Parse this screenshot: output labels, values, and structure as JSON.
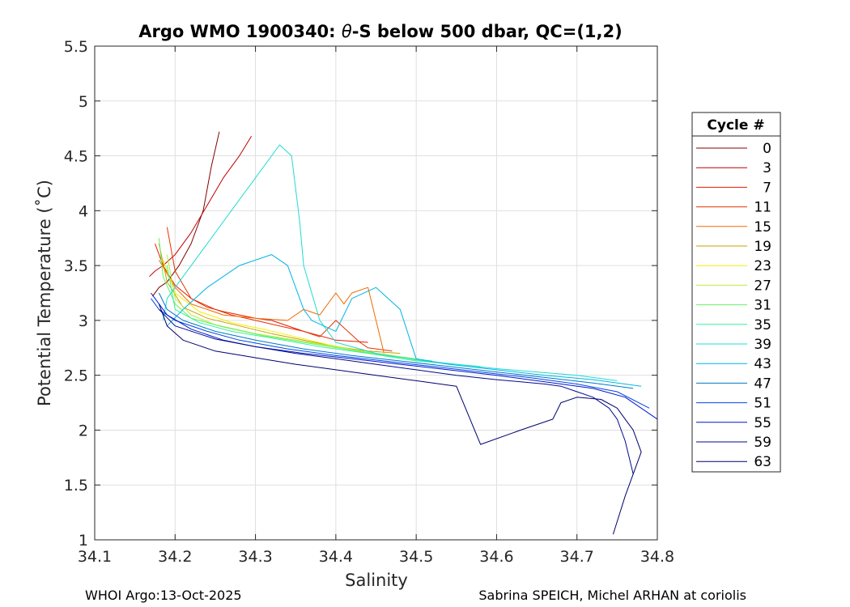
{
  "chart_data": {
    "type": "line",
    "title_prefix": "Argo WMO 1900340: ",
    "title_theta": "θ",
    "title_suffix": "-S below 500 dbar,  QC=(1,2)",
    "xlabel": "Salinity",
    "ylabel": "Potential Temperature (˚C)",
    "xlim": [
      34.1,
      34.8
    ],
    "ylim": [
      1,
      5.5
    ],
    "xticks": [
      "34.1",
      "34.2",
      "34.3",
      "34.4",
      "34.5",
      "34.6",
      "34.7",
      "34.8"
    ],
    "yticks": [
      "1",
      "1.5",
      "2",
      "2.5",
      "3",
      "3.5",
      "4",
      "4.5",
      "5",
      "5.5"
    ],
    "grid": true,
    "legend": {
      "title": "Cycle #",
      "placement": "right-outside",
      "entries": [
        {
          "label": "0",
          "color": "#800000"
        },
        {
          "label": "3",
          "color": "#c00000"
        },
        {
          "label": "7",
          "color": "#e61a00"
        },
        {
          "label": "11",
          "color": "#e63200"
        },
        {
          "label": "15",
          "color": "#f06a00"
        },
        {
          "label": "19",
          "color": "#c8a000"
        },
        {
          "label": "23",
          "color": "#f0f000"
        },
        {
          "label": "27",
          "color": "#b4f03c"
        },
        {
          "label": "31",
          "color": "#64f064"
        },
        {
          "label": "35",
          "color": "#3cf0a0"
        },
        {
          "label": "39",
          "color": "#1edcd2"
        },
        {
          "label": "43",
          "color": "#00b4e6"
        },
        {
          "label": "47",
          "color": "#0078c8"
        },
        {
          "label": "51",
          "color": "#0046e6"
        },
        {
          "label": "55",
          "color": "#0014c8"
        },
        {
          "label": "59",
          "color": "#000a8c"
        },
        {
          "label": "63",
          "color": "#00006e"
        }
      ]
    },
    "series": [
      {
        "name": "0",
        "color": "#800000",
        "x": [
          34.255,
          34.245,
          34.235,
          34.22,
          34.205,
          34.19,
          34.18,
          34.172
        ],
        "y": [
          4.72,
          4.4,
          4.0,
          3.7,
          3.5,
          3.35,
          3.3,
          3.22
        ]
      },
      {
        "name": "3",
        "color": "#c00000",
        "x": [
          34.295,
          34.28,
          34.26,
          34.24,
          34.22,
          34.2,
          34.185,
          34.175,
          34.168
        ],
        "y": [
          4.68,
          4.5,
          4.3,
          4.05,
          3.8,
          3.6,
          3.5,
          3.45,
          3.4
        ]
      },
      {
        "name": "7",
        "color": "#e61a00",
        "x": [
          34.44,
          34.4,
          34.36,
          34.32,
          34.3,
          34.28,
          34.26,
          34.24,
          34.22,
          34.2,
          34.185,
          34.175
        ],
        "y": [
          2.8,
          2.82,
          2.9,
          3.0,
          3.02,
          3.05,
          3.08,
          3.12,
          3.2,
          3.32,
          3.5,
          3.7
        ]
      },
      {
        "name": "11",
        "color": "#e63200",
        "x": [
          34.47,
          34.44,
          34.43,
          34.4,
          34.38,
          34.36,
          34.33,
          34.3,
          34.27,
          34.25,
          34.22,
          34.2,
          34.19
        ],
        "y": [
          2.72,
          2.75,
          2.8,
          3.0,
          2.85,
          2.9,
          2.95,
          3.0,
          3.05,
          3.1,
          3.2,
          3.45,
          3.85
        ]
      },
      {
        "name": "15",
        "color": "#f06a00",
        "x": [
          34.46,
          34.45,
          34.44,
          34.42,
          34.41,
          34.4,
          34.38,
          34.36,
          34.34,
          34.3,
          34.26,
          34.22,
          34.2,
          34.18
        ],
        "y": [
          2.7,
          3.0,
          3.3,
          3.25,
          3.15,
          3.25,
          3.05,
          3.1,
          3.0,
          3.02,
          3.05,
          3.15,
          3.3,
          3.55
        ]
      },
      {
        "name": "19",
        "color": "#c8a000",
        "x": [
          34.48,
          34.44,
          34.4,
          34.36,
          34.32,
          34.28,
          34.24,
          34.21,
          34.19,
          34.18
        ],
        "y": [
          2.7,
          2.72,
          2.76,
          2.82,
          2.88,
          2.95,
          3.02,
          3.12,
          3.35,
          3.7
        ]
      },
      {
        "name": "23",
        "color": "#f0f000",
        "x": [
          34.47,
          34.43,
          34.39,
          34.35,
          34.31,
          34.27,
          34.23,
          34.2,
          34.185
        ],
        "y": [
          2.68,
          2.72,
          2.78,
          2.85,
          2.92,
          2.98,
          3.08,
          3.25,
          3.55
        ]
      },
      {
        "name": "27",
        "color": "#b4f03c",
        "x": [
          34.5,
          34.45,
          34.4,
          34.35,
          34.3,
          34.25,
          34.22,
          34.2,
          34.19
        ],
        "y": [
          2.65,
          2.7,
          2.76,
          2.82,
          2.88,
          2.96,
          3.05,
          3.2,
          3.6
        ]
      },
      {
        "name": "31",
        "color": "#64f064",
        "x": [
          34.52,
          34.46,
          34.41,
          34.36,
          34.31,
          34.26,
          34.22,
          34.2,
          34.185,
          34.18
        ],
        "y": [
          2.63,
          2.68,
          2.74,
          2.8,
          2.86,
          2.94,
          3.02,
          3.15,
          3.4,
          3.75
        ]
      },
      {
        "name": "35",
        "color": "#3cf0a0",
        "x": [
          34.58,
          34.5,
          34.44,
          34.38,
          34.32,
          34.27,
          34.23,
          34.2,
          34.19
        ],
        "y": [
          2.58,
          2.63,
          2.7,
          2.76,
          2.84,
          2.9,
          2.98,
          3.1,
          3.5
        ]
      },
      {
        "name": "39",
        "color": "#1edcd2",
        "x": [
          34.75,
          34.7,
          34.65,
          34.6,
          34.55,
          34.5,
          34.45,
          34.4,
          34.38,
          34.36,
          34.355,
          34.35,
          34.345,
          34.33,
          34.3,
          34.27,
          34.24,
          34.21,
          34.19,
          34.185
        ],
        "y": [
          2.45,
          2.5,
          2.53,
          2.56,
          2.6,
          2.64,
          2.7,
          2.8,
          3.0,
          3.5,
          3.9,
          4.2,
          4.5,
          4.6,
          4.3,
          4.0,
          3.7,
          3.4,
          3.2,
          3.0
        ]
      },
      {
        "name": "43",
        "color": "#00b4e6",
        "x": [
          34.78,
          34.72,
          34.66,
          34.6,
          34.54,
          34.5,
          34.48,
          34.45,
          34.42,
          34.4,
          34.37,
          34.36,
          34.35,
          34.34,
          34.32,
          34.28,
          34.24,
          34.21,
          34.19
        ],
        "y": [
          2.4,
          2.46,
          2.5,
          2.55,
          2.6,
          2.65,
          3.1,
          3.3,
          3.2,
          2.9,
          3.0,
          3.1,
          3.3,
          3.5,
          3.6,
          3.5,
          3.3,
          3.1,
          2.95
        ]
      },
      {
        "name": "47",
        "color": "#0078c8",
        "x": [
          34.77,
          34.72,
          34.66,
          34.6,
          34.54,
          34.48,
          34.42,
          34.36,
          34.3,
          34.25,
          34.21,
          34.19,
          34.18
        ],
        "y": [
          2.38,
          2.43,
          2.48,
          2.53,
          2.58,
          2.63,
          2.68,
          2.74,
          2.82,
          2.9,
          3.0,
          3.1,
          3.25
        ]
      },
      {
        "name": "51",
        "color": "#0046e6",
        "x": [
          34.79,
          34.75,
          34.7,
          34.64,
          34.58,
          34.52,
          34.46,
          34.4,
          34.34,
          34.28,
          34.24,
          34.2,
          34.18,
          34.17
        ],
        "y": [
          2.2,
          2.35,
          2.42,
          2.48,
          2.53,
          2.58,
          2.63,
          2.68,
          2.74,
          2.82,
          2.9,
          3.0,
          3.1,
          3.2
        ]
      },
      {
        "name": "55",
        "color": "#0014c8",
        "x": [
          34.8,
          34.76,
          34.72,
          34.66,
          34.6,
          34.54,
          34.48,
          34.42,
          34.36,
          34.3,
          34.26,
          34.22,
          34.19,
          34.17
        ],
        "y": [
          2.1,
          2.3,
          2.38,
          2.44,
          2.5,
          2.55,
          2.6,
          2.65,
          2.7,
          2.76,
          2.82,
          2.92,
          3.05,
          3.25
        ]
      },
      {
        "name": "59",
        "color": "#000a8c",
        "x": [
          34.77,
          34.76,
          34.75,
          34.74,
          34.73,
          34.72,
          34.7,
          34.68,
          34.66,
          34.6,
          34.55,
          34.5,
          34.45,
          34.4,
          34.35,
          34.3,
          34.25,
          34.2,
          34.18
        ],
        "y": [
          1.6,
          1.9,
          2.1,
          2.2,
          2.25,
          2.3,
          2.35,
          2.4,
          2.42,
          2.46,
          2.5,
          2.55,
          2.6,
          2.65,
          2.7,
          2.76,
          2.83,
          2.95,
          3.1
        ]
      },
      {
        "name": "63",
        "color": "#00006e",
        "x": [
          34.745,
          34.76,
          34.77,
          34.78,
          34.77,
          34.76,
          34.75,
          34.73,
          34.7,
          34.68,
          34.67,
          34.63,
          34.58,
          34.55,
          34.5,
          34.45,
          34.4,
          34.35,
          34.3,
          34.25,
          34.21,
          34.19,
          34.18
        ],
        "y": [
          1.05,
          1.4,
          1.6,
          1.8,
          2.0,
          2.1,
          2.2,
          2.28,
          2.3,
          2.25,
          2.1,
          2.0,
          1.87,
          2.4,
          2.45,
          2.5,
          2.55,
          2.6,
          2.66,
          2.72,
          2.82,
          2.95,
          3.15
        ]
      }
    ]
  },
  "footer": {
    "left": "WHOI Argo:13-Oct-2025",
    "right": "Sabrina SPEICH, Michel ARHAN at coriolis"
  }
}
